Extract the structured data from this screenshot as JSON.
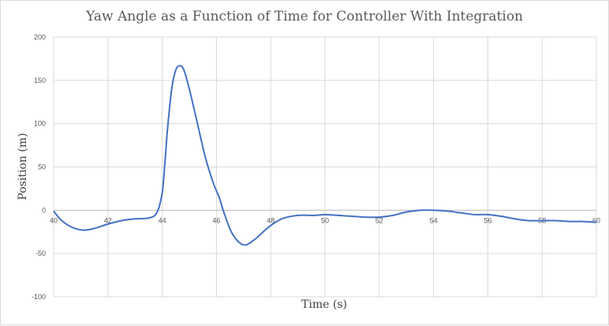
{
  "chart_data": {
    "type": "line",
    "title": "Yaw Angle  as a Function of Time for Controller With Integration",
    "xlabel": "Time (s)",
    "ylabel": "Position (m)",
    "xlim": [
      40,
      60
    ],
    "ylim": [
      -100,
      200
    ],
    "xticks": [
      40,
      42,
      44,
      46,
      48,
      50,
      52,
      54,
      56,
      58,
      60
    ],
    "yticks": [
      -100,
      -50,
      0,
      50,
      100,
      150,
      200
    ],
    "grid": true,
    "series": [
      {
        "color": "#4472c4",
        "x": [
          40.0,
          40.3,
          40.7,
          41.1,
          41.5,
          42.0,
          42.5,
          43.0,
          43.5,
          43.8,
          44.0,
          44.1,
          44.2,
          44.35,
          44.5,
          44.65,
          44.8,
          45.0,
          45.3,
          45.6,
          45.9,
          46.1,
          46.3,
          46.6,
          47.0,
          47.4,
          47.9,
          48.4,
          49.0,
          49.6,
          50.0,
          50.5,
          51.0,
          51.5,
          52.0,
          52.5,
          53.0,
          53.5,
          54.0,
          54.5,
          55.0,
          55.5,
          56.0,
          56.5,
          57.0,
          57.5,
          58.0,
          58.5,
          59.0,
          59.5,
          60.0
        ],
        "y": [
          -1,
          -12,
          -20,
          -23,
          -21,
          -16,
          -12,
          -10,
          -9,
          -3,
          20,
          55,
          95,
          140,
          162,
          167,
          162,
          140,
          100,
          60,
          30,
          15,
          -5,
          -28,
          -40,
          -34,
          -20,
          -10,
          -6,
          -6,
          -5,
          -6,
          -7,
          -8,
          -8,
          -6,
          -2,
          0,
          0,
          -1,
          -3,
          -5,
          -5,
          -7,
          -10,
          -12,
          -12,
          -12,
          -13,
          -13,
          -14
        ]
      }
    ]
  }
}
